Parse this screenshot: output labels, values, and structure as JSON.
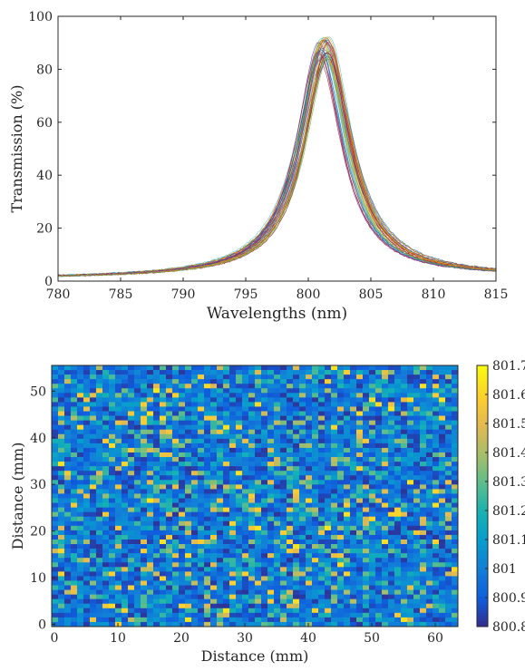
{
  "chart_data": [
    {
      "type": "line",
      "title": "",
      "xlabel": "Wavelengths (nm)",
      "ylabel": "Transmission (%)",
      "xlim": [
        780,
        815
      ],
      "ylim": [
        0,
        100
      ],
      "x_ticks": [
        780,
        785,
        790,
        795,
        800,
        805,
        810,
        815
      ],
      "y_ticks": [
        0,
        20,
        40,
        60,
        80,
        100
      ],
      "grid": false,
      "legend": "none",
      "series_count": 40,
      "peak_wavelength_range": [
        800.8,
        801.7
      ],
      "peak_transmission_range": [
        83,
        92
      ],
      "representative_series": {
        "x": [
          780,
          782,
          784,
          786,
          788,
          790,
          792,
          794,
          795,
          796,
          797,
          798,
          799,
          800,
          801,
          802,
          803,
          804,
          805,
          806,
          807,
          808,
          810,
          812,
          814,
          815
        ],
        "y": [
          1.6,
          2.0,
          2.4,
          2.9,
          3.6,
          4.8,
          6.8,
          10.8,
          14.5,
          20.5,
          28.5,
          40,
          57,
          75,
          88,
          82,
          62,
          41,
          26,
          16,
          11,
          8,
          5.6,
          4.0,
          3.0,
          2.8
        ]
      }
    },
    {
      "type": "heatmap",
      "title": "",
      "xlabel": "Distance (mm)",
      "ylabel": "Distance (mm)",
      "xlim": [
        0,
        64
      ],
      "ylim": [
        0,
        56
      ],
      "x_ticks": [
        0,
        10,
        20,
        30,
        40,
        50,
        60
      ],
      "y_ticks": [
        0,
        10,
        20,
        30,
        40,
        50
      ],
      "grid_cols": 64,
      "grid_rows": 57,
      "colorbar": {
        "min": 800.8,
        "max": 801.7,
        "ticks": [
          "800.8",
          "800.9",
          "801",
          "801.1",
          "801.2",
          "801.3",
          "801.4",
          "801.5",
          "801.6",
          "801.7"
        ],
        "colormap": "parula"
      }
    }
  ]
}
